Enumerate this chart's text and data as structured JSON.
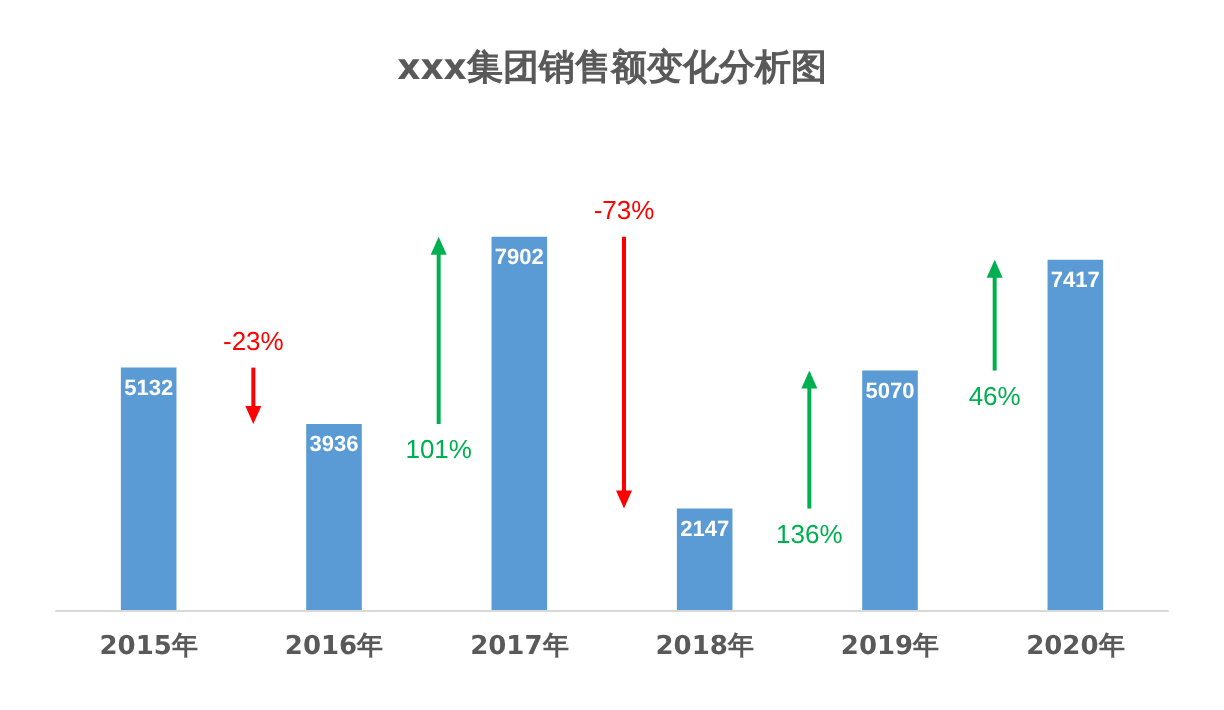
{
  "chart_data": {
    "type": "bar",
    "title": "xxx集团销售额变化分析图",
    "categories": [
      "2015年",
      "2016年",
      "2017年",
      "2018年",
      "2019年",
      "2020年"
    ],
    "values": [
      5132,
      3936,
      7902,
      2147,
      5070,
      7417
    ],
    "color": "#5b9bd5",
    "data_labels": true,
    "grid": false,
    "annotations": [
      "-23%",
      "101%",
      "-73%",
      "136%",
      "46%"
    ]
  }
}
